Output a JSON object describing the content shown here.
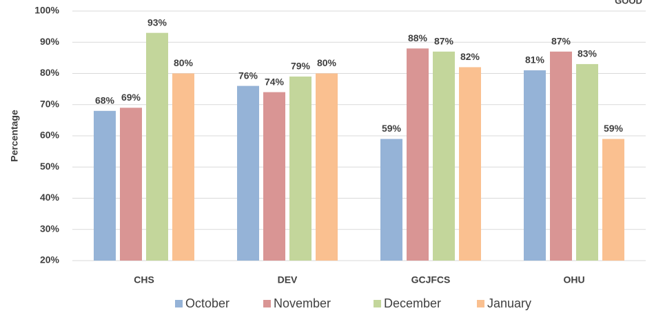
{
  "chart_data": {
    "type": "bar",
    "annotation": "GOOD",
    "y_label": "Percentage",
    "categories": [
      "CHS",
      "DEV",
      "GCJFCS",
      "OHU"
    ],
    "series": [
      {
        "name": "October",
        "color": "#95b3d7",
        "values": [
          68,
          76,
          59,
          81
        ],
        "value_labels": [
          "68%",
          "76%",
          "59%",
          "81%"
        ]
      },
      {
        "name": "November",
        "color": "#d99594",
        "values": [
          69,
          74,
          88,
          87
        ],
        "value_labels": [
          "69%",
          "74%",
          "88%",
          "87%"
        ]
      },
      {
        "name": "December",
        "color": "#c3d69b",
        "values": [
          93,
          79,
          87,
          83
        ],
        "value_labels": [
          "93%",
          "79%",
          "87%",
          "83%"
        ]
      },
      {
        "name": "January",
        "color": "#fac090",
        "values": [
          80,
          80,
          82,
          59
        ],
        "value_labels": [
          "80%",
          "80%",
          "82%",
          "59%"
        ]
      }
    ],
    "ylim": [
      20,
      100
    ],
    "yticks": [
      {
        "value": 20,
        "label": "20%"
      },
      {
        "value": 30,
        "label": "30%"
      },
      {
        "value": 40,
        "label": "40%"
      },
      {
        "value": 50,
        "label": "50%"
      },
      {
        "value": 60,
        "label": "60%"
      },
      {
        "value": 70,
        "label": "70%"
      },
      {
        "value": 80,
        "label": "80%"
      },
      {
        "value": 90,
        "label": "90%"
      },
      {
        "value": 100,
        "label": "100%"
      }
    ],
    "grid": true,
    "legend": "bottom"
  }
}
